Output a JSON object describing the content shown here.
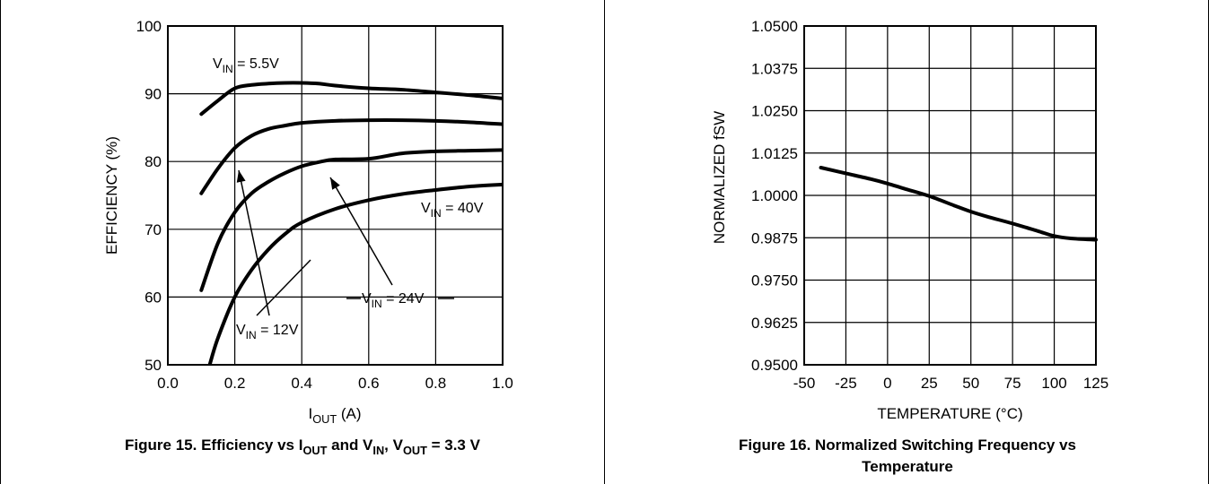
{
  "chart_data": [
    {
      "type": "line",
      "caption": {
        "prefix": "Figure 15. Efficiency vs I",
        "sub1": "OUT",
        "mid": " and V",
        "sub2": "IN",
        "mid2": ", V",
        "sub3": "OUT",
        "suffix": " = 3.3 V"
      },
      "xlabel": {
        "main": "I",
        "sub": "OUT",
        "rest": " (A)"
      },
      "ylabel": "EFFICIENCY (%)",
      "xlim": [
        0.0,
        1.0
      ],
      "ylim": [
        50,
        100
      ],
      "x_ticks": [
        "0.0",
        "0.2",
        "0.4",
        "0.6",
        "0.8",
        "1.0"
      ],
      "y_ticks": [
        "50",
        "60",
        "70",
        "80",
        "90",
        "100"
      ],
      "grid": true,
      "series": [
        {
          "name": {
            "main": "V",
            "sub": "IN",
            "rest": " = 5.5V"
          },
          "points": [
            [
              0.1,
              87.0
            ],
            [
              0.15,
              89.0
            ],
            [
              0.2,
              90.8
            ],
            [
              0.25,
              91.3
            ],
            [
              0.3,
              91.5
            ],
            [
              0.35,
              91.6
            ],
            [
              0.4,
              91.6
            ],
            [
              0.45,
              91.5
            ],
            [
              0.5,
              91.2
            ],
            [
              0.6,
              90.8
            ],
            [
              0.7,
              90.6
            ],
            [
              0.8,
              90.2
            ],
            [
              0.9,
              89.8
            ],
            [
              1.0,
              89.3
            ]
          ]
        },
        {
          "name": {
            "main": "V",
            "sub": "IN",
            "rest": " = 12V"
          },
          "points": [
            [
              0.1,
              75.3
            ],
            [
              0.15,
              79.0
            ],
            [
              0.2,
              82.0
            ],
            [
              0.25,
              83.8
            ],
            [
              0.3,
              84.8
            ],
            [
              0.35,
              85.3
            ],
            [
              0.4,
              85.7
            ],
            [
              0.5,
              86.0
            ],
            [
              0.6,
              86.1
            ],
            [
              0.7,
              86.1
            ],
            [
              0.8,
              86.0
            ],
            [
              0.9,
              85.8
            ],
            [
              1.0,
              85.5
            ]
          ]
        },
        {
          "name": {
            "main": "V",
            "sub": "IN",
            "rest": " = 24V"
          },
          "points": [
            [
              0.1,
              61.0
            ],
            [
              0.15,
              68.0
            ],
            [
              0.2,
              72.5
            ],
            [
              0.25,
              75.3
            ],
            [
              0.3,
              77.0
            ],
            [
              0.35,
              78.3
            ],
            [
              0.4,
              79.3
            ],
            [
              0.45,
              79.9
            ],
            [
              0.5,
              80.3
            ],
            [
              0.6,
              80.4
            ],
            [
              0.7,
              81.2
            ],
            [
              0.8,
              81.5
            ],
            [
              0.9,
              81.6
            ],
            [
              1.0,
              81.7
            ]
          ]
        },
        {
          "name": {
            "main": "V",
            "sub": "IN",
            "rest": " = 40V"
          },
          "points": [
            [
              0.125,
              50.0
            ],
            [
              0.15,
              54.0
            ],
            [
              0.2,
              60.0
            ],
            [
              0.25,
              64.0
            ],
            [
              0.3,
              67.0
            ],
            [
              0.35,
              69.3
            ],
            [
              0.4,
              71.0
            ],
            [
              0.5,
              73.0
            ],
            [
              0.6,
              74.3
            ],
            [
              0.7,
              75.2
            ],
            [
              0.8,
              75.8
            ],
            [
              0.9,
              76.3
            ],
            [
              1.0,
              76.6
            ]
          ]
        }
      ]
    },
    {
      "type": "line",
      "caption": {
        "line1": "Figure 16. Normalized Switching Frequency vs",
        "line2": "Temperature"
      },
      "xlabel": "TEMPERATURE (°C)",
      "ylabel": "NORMALIZED fSW",
      "xlim": [
        -50,
        125
      ],
      "ylim": [
        0.95,
        1.05
      ],
      "x_ticks": [
        "-50",
        "-25",
        "0",
        "25",
        "50",
        "75",
        "100",
        "125"
      ],
      "y_ticks": [
        "0.9500",
        "0.9625",
        "0.9750",
        "0.9875",
        "1.0000",
        "1.0125",
        "1.0250",
        "1.0375",
        "1.0500"
      ],
      "grid": true,
      "series": [
        {
          "points": [
            [
              -40,
              1.0082
            ],
            [
              -25,
              1.0065
            ],
            [
              -10,
              1.0048
            ],
            [
              0,
              1.0035
            ],
            [
              10,
              1.002
            ],
            [
              25,
              0.9998
            ],
            [
              40,
              0.997
            ],
            [
              50,
              0.9952
            ],
            [
              60,
              0.9937
            ],
            [
              75,
              0.9917
            ],
            [
              90,
              0.9895
            ],
            [
              100,
              0.988
            ],
            [
              110,
              0.9873
            ],
            [
              125,
              0.9869
            ]
          ]
        }
      ]
    }
  ]
}
